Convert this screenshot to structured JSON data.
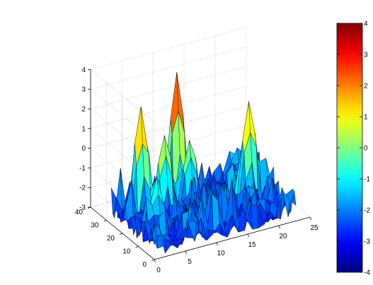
{
  "chart_data": {
    "type": "surface3d",
    "title": "",
    "xlabel": "",
    "ylabel": "",
    "zlabel": "",
    "xlim": [
      0,
      25
    ],
    "ylim": [
      0,
      40
    ],
    "zlim": [
      -3,
      4
    ],
    "x_ticks": [
      "0",
      "5",
      "10",
      "15",
      "20",
      "25"
    ],
    "y_ticks": [
      "0",
      "10",
      "20",
      "30",
      "40"
    ],
    "z_ticks": [
      "-3",
      "-2",
      "-1",
      "0",
      "1",
      "2",
      "3",
      "4"
    ],
    "colorbar": {
      "colormap": "jet",
      "limits": [
        -4,
        4
      ],
      "ticks": [
        "4",
        "3",
        "2",
        "1",
        "0",
        "-1",
        "-2",
        "-3",
        "-4"
      ]
    },
    "grid": true,
    "surface": {
      "x_range": [
        1,
        23
      ],
      "y_range": [
        1,
        31
      ],
      "floor": -3,
      "peaks": [
        {
          "x": 4,
          "y": 24,
          "z": 2.9
        },
        {
          "x": 7,
          "y": 21,
          "z": 1.4
        },
        {
          "x": 4,
          "y": 14,
          "z": -0.3
        },
        {
          "x": 10,
          "y": 25,
          "z": 4.0
        },
        {
          "x": 11,
          "y": 21,
          "z": 0.9
        },
        {
          "x": 19,
          "y": 15,
          "z": 2.6
        },
        {
          "x": 20,
          "y": 17,
          "z": 0.5
        }
      ]
    }
  }
}
